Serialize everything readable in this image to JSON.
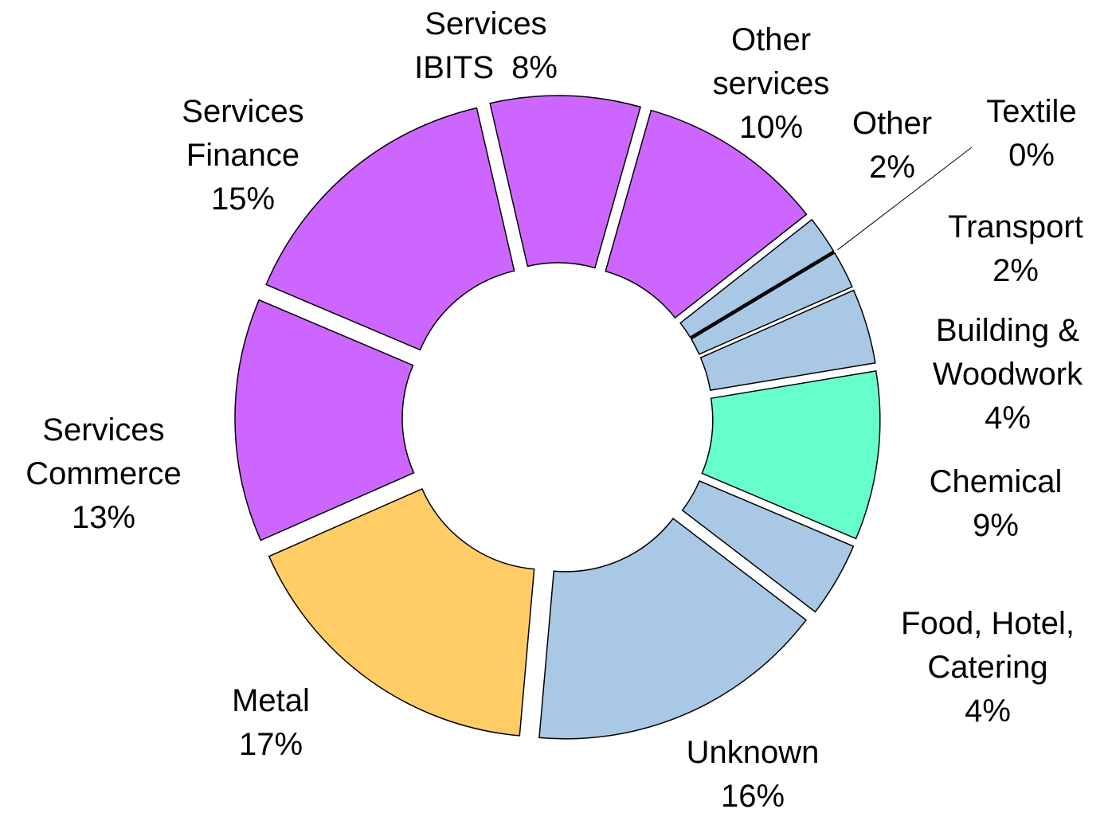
{
  "chart_data": {
    "type": "pie",
    "categories": [
      "Services\nIBITS",
      "Other\nservices",
      "Other",
      "Textile",
      "Transport",
      "Building &\nWoodwork",
      "Chemical",
      "Food, Hotel,\nCatering",
      "Unknown",
      "Metal",
      "Services\nCommerce",
      "Services\nFinance"
    ],
    "values": [
      8,
      10,
      2,
      0,
      2,
      4,
      9,
      4,
      16,
      17,
      13,
      15
    ],
    "value_labels": [
      "8%",
      "10%",
      "2%",
      "0%",
      "2%",
      "4%",
      "9%",
      "4%",
      "16%",
      "17%",
      "13%",
      "15%"
    ],
    "colors": [
      "#cc66ff",
      "#cc66ff",
      "#a9c8e6",
      "#a9c8e6",
      "#a9c8e6",
      "#a9c8e6",
      "#66ffcc",
      "#a9c8e6",
      "#a9c8e6",
      "#ffcc66",
      "#cc66ff",
      "#cc66ff"
    ]
  }
}
